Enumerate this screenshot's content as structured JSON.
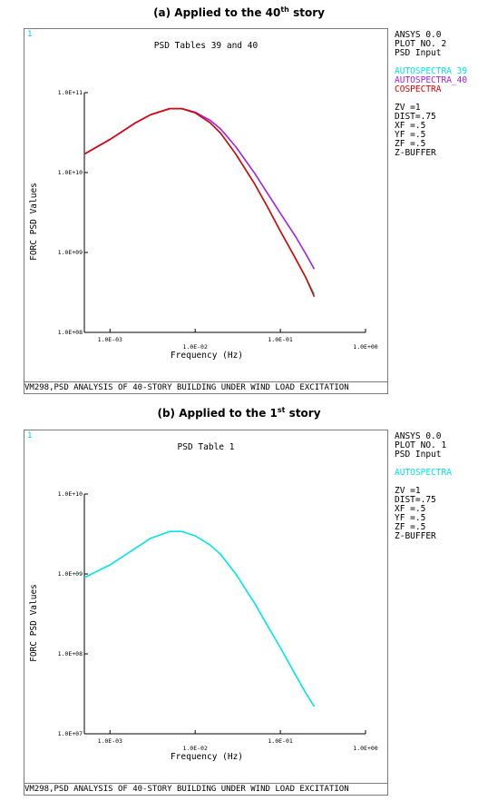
{
  "panels": [
    {
      "caption_main": "(a) Applied to the 40",
      "caption_sup": "th",
      "caption_tail": " story",
      "window_number": "1",
      "plot_title": "PSD Tables 39 and 40",
      "footer": "VM298,PSD ANALYSIS OF 40-STORY BUILDING UNDER WIND LOAD EXCITATION",
      "side_info": [
        "ANSYS 0.0",
        "PLOT NO.    2",
        "PSD Input"
      ],
      "legend": [
        {
          "label": "AUTOSPECTRA 39",
          "color": "#00e5e5"
        },
        {
          "label": "AUTOSPECTRA_40",
          "color": "#a020f0"
        },
        {
          "label": "COSPECTRA",
          "color": "#e00000"
        }
      ],
      "view_params": [
        "ZV  =1",
        "DIST=.75",
        "XF  =.5",
        "YF  =.5",
        "ZF  =.5",
        "Z-BUFFER"
      ],
      "chart_data": {
        "type": "line",
        "xlabel": "Frequency (Hz)",
        "ylabel": "FORC PSD Values",
        "xscale": "log",
        "yscale": "log",
        "xlim": [
          0.0005,
          1.0
        ],
        "ylim": [
          100000000.0,
          100000000000.0
        ],
        "x_ticks": [
          "1.0E-03",
          "1.0E-02",
          "1.0E-01",
          "1.0E+00"
        ],
        "y_ticks": [
          "1.0E+08",
          "1.0E+09",
          "1.0E+10",
          "1.0E+11"
        ],
        "grid": false,
        "series": [
          {
            "name": "AUTOSPECTRA 39",
            "color": "#00e5e5",
            "x": [
              0.0005,
              0.001,
              0.002,
              0.003,
              0.005,
              0.007,
              0.01,
              0.015,
              0.02,
              0.03,
              0.05,
              0.07,
              0.1,
              0.15,
              0.2,
              0.25
            ],
            "y": [
              17000000000.0,
              26000000000.0,
              42000000000.0,
              53000000000.0,
              63000000000.0,
              63000000000.0,
              56000000000.0,
              42000000000.0,
              31000000000.0,
              17000000000.0,
              7200000000.0,
              3800000000.0,
              1850000000.0,
              850000000.0,
              480000000.0,
              300000000.0
            ]
          },
          {
            "name": "AUTOSPECTRA_40",
            "color": "#a020f0",
            "x": [
              0.0005,
              0.001,
              0.002,
              0.003,
              0.005,
              0.007,
              0.01,
              0.015,
              0.02,
              0.03,
              0.05,
              0.07,
              0.1,
              0.15,
              0.2,
              0.25
            ],
            "y": [
              17000000000.0,
              26000000000.0,
              42000000000.0,
              53000000000.0,
              63000000000.0,
              63000000000.0,
              57000000000.0,
              45000000000.0,
              35000000000.0,
              21000000000.0,
              9800000000.0,
              5600000000.0,
              3100000000.0,
              1600000000.0,
              950000000.0,
              620000000.0
            ]
          },
          {
            "name": "COSPECTRA",
            "color": "#e00000",
            "x": [
              0.0005,
              0.001,
              0.002,
              0.003,
              0.005,
              0.007,
              0.01,
              0.015,
              0.02,
              0.03,
              0.05,
              0.07,
              0.1,
              0.15,
              0.2,
              0.25
            ],
            "y": [
              17000000000.0,
              26000000000.0,
              42000000000.0,
              53000000000.0,
              63000000000.0,
              63000000000.0,
              56000000000.0,
              42000000000.0,
              31000000000.0,
              17000000000.0,
              7200000000.0,
              3800000000.0,
              1850000000.0,
              850000000.0,
              480000000.0,
              280000000.0
            ]
          }
        ]
      }
    },
    {
      "caption_main": "(b) Applied to the 1",
      "caption_sup": "st",
      "caption_tail": " story",
      "window_number": "1",
      "plot_title": "PSD Table  1",
      "footer": "VM298,PSD ANALYSIS OF 40-STORY BUILDING UNDER WIND LOAD EXCITATION",
      "side_info": [
        "ANSYS 0.0",
        "PLOT NO.    1",
        "PSD Input"
      ],
      "legend": [
        {
          "label": "AUTOSPECTRA",
          "color": "#00e5e5"
        }
      ],
      "view_params": [
        "ZV  =1",
        "DIST=.75",
        "XF  =.5",
        "YF  =.5",
        "ZF  =.5",
        "Z-BUFFER"
      ],
      "chart_data": {
        "type": "line",
        "xlabel": "Frequency (Hz)",
        "ylabel": "FORC PSD Values",
        "xscale": "log",
        "yscale": "log",
        "xlim": [
          0.0005,
          1.0
        ],
        "ylim": [
          10000000.0,
          10000000000.0
        ],
        "x_ticks": [
          "1.0E-03",
          "1.0E-02",
          "1.0E-01",
          "1.0E+00"
        ],
        "y_ticks": [
          "1.0E+07",
          "1.0E+08",
          "1.0E+09",
          "1.0E+10"
        ],
        "grid": false,
        "series": [
          {
            "name": "AUTOSPECTRA",
            "color": "#00e5e5",
            "x": [
              0.0005,
              0.001,
              0.002,
              0.003,
              0.005,
              0.007,
              0.01,
              0.015,
              0.02,
              0.03,
              0.05,
              0.07,
              0.1,
              0.15,
              0.2,
              0.25
            ],
            "y": [
              900000000.0,
              1300000000.0,
              2100000000.0,
              2800000000.0,
              3400000000.0,
              3400000000.0,
              3000000000.0,
              2300000000.0,
              1750000000.0,
              1000000000.0,
              430000000.0,
              230000000.0,
              120000000.0,
              55000000.0,
              32000000.0,
              22000000.0
            ]
          }
        ]
      }
    }
  ]
}
